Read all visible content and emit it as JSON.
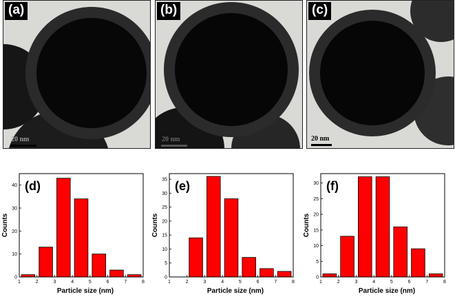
{
  "tem_panels": [
    {
      "tag": "(a)",
      "scale": "20 nm"
    },
    {
      "tag": "(b)",
      "scale": "20 nm"
    },
    {
      "tag": "(c)",
      "scale": "20 nm"
    }
  ],
  "chart_data": [
    {
      "type": "bar",
      "panel_label": "(d)",
      "xlabel": "Particle size (nm)",
      "ylabel": "Counts",
      "xlim": [
        1,
        8
      ],
      "ylim": [
        0,
        45
      ],
      "yticks": [
        0,
        10,
        20,
        30,
        40
      ],
      "x": [
        1.5,
        2.5,
        3.5,
        4.5,
        5.5,
        6.5,
        7.5
      ],
      "values": [
        1,
        13,
        43,
        34,
        10,
        3,
        1
      ],
      "color": "#ff0000"
    },
    {
      "type": "bar",
      "panel_label": "(e)",
      "xlabel": "Particle size (nm)",
      "ylabel": "Counts",
      "xlim": [
        1,
        8
      ],
      "ylim": [
        0,
        37
      ],
      "yticks": [
        0,
        5,
        10,
        15,
        20,
        25,
        30,
        35
      ],
      "x": [
        2.5,
        3.5,
        4.5,
        5.5,
        6.5,
        7.5
      ],
      "values": [
        14,
        36,
        28,
        7,
        3,
        2
      ],
      "color": "#ff0000"
    },
    {
      "type": "bar",
      "panel_label": "(f)",
      "xlabel": "Particle size (nm)",
      "ylabel": "Counts",
      "xlim": [
        1,
        8
      ],
      "ylim": [
        0,
        33
      ],
      "yticks": [
        0,
        5,
        10,
        15,
        20,
        25,
        30
      ],
      "x": [
        1.5,
        2.5,
        3.5,
        4.5,
        5.5,
        6.5,
        7.5
      ],
      "values": [
        1,
        13,
        32,
        32,
        16,
        9,
        1
      ],
      "color": "#ff0000"
    }
  ],
  "x_ticks": [
    1,
    2,
    3,
    4,
    5,
    6,
    7,
    8
  ]
}
